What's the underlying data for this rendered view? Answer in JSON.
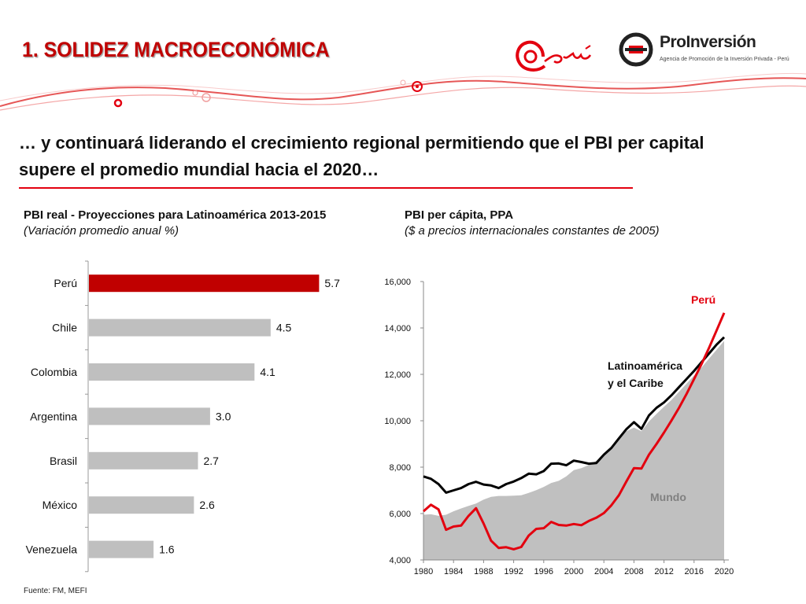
{
  "header": {
    "title": "1. SOLIDEZ MACROECONÓMICA",
    "logo_peru": "Perú",
    "logo_proinversion": "ProInversión",
    "logo_proinversion_tagline": "Agencia de Promoción de la Inversión Privada - Perú"
  },
  "subtitle": "… y continuará liderando el crecimiento regional permitiendo que el PBI per capital supere el promedio mundial hacia el 2020…",
  "colors": {
    "title": "#c00000",
    "accent_line": "#e3000f",
    "peru_bar": "#c00000",
    "other_bars": "#bfbfbf",
    "peru_line": "#e3000f",
    "lac_line": "#000000",
    "world_area": "#c0c0c0"
  },
  "bar_chart_header": {
    "title": "PBI real - Proyecciones para Latinoamérica 2013-2015",
    "subtitle": "(Variación promedio anual %)"
  },
  "line_chart_header": {
    "title": "PBI per cápita, PPA",
    "subtitle": "($ a precios internacionales constantes de 2005)"
  },
  "source": "Fuente: FM, MEFI",
  "chart_data": [
    {
      "type": "bar",
      "orientation": "horizontal",
      "categories": [
        "Perú",
        "Chile",
        "Colombia",
        "Argentina",
        "Brasil",
        "México",
        "Venezuela"
      ],
      "values": [
        5.7,
        4.5,
        4.1,
        3.0,
        2.7,
        2.6,
        1.6
      ],
      "value_labels": [
        "5.7",
        "4.5",
        "4.1",
        "3.0",
        "2.7",
        "2.6",
        "1.6"
      ],
      "highlight": "Perú",
      "xlim": [
        0,
        6.3
      ]
    },
    {
      "type": "line",
      "x": [
        1980,
        1981,
        1982,
        1983,
        1984,
        1985,
        1986,
        1987,
        1988,
        1989,
        1990,
        1991,
        1992,
        1993,
        1994,
        1995,
        1996,
        1997,
        1998,
        1999,
        2000,
        2001,
        2002,
        2003,
        2004,
        2005,
        2006,
        2007,
        2008,
        2009,
        2010,
        2011,
        2012,
        2013,
        2014,
        2015,
        2016,
        2017,
        2018,
        2019,
        2020
      ],
      "x_ticks": [
        "1980",
        "1984",
        "1988",
        "1992",
        "1996",
        "2000",
        "2004",
        "2008",
        "2012",
        "2016",
        "2020"
      ],
      "y_ticks": [
        "4,000",
        "6,000",
        "8,000",
        "10,000",
        "12,000",
        "14,000",
        "16,000"
      ],
      "ylim": [
        4000,
        16000
      ],
      "series": [
        {
          "name": "Mundo",
          "style": "area",
          "values": [
            5950,
            5970,
            5900,
            5950,
            6100,
            6220,
            6330,
            6430,
            6600,
            6720,
            6760,
            6760,
            6770,
            6790,
            6890,
            7010,
            7150,
            7320,
            7410,
            7600,
            7870,
            7960,
            8090,
            8270,
            8560,
            8840,
            9200,
            9550,
            9700,
            9550,
            9970,
            10300,
            10600,
            10900,
            11250,
            11600,
            11950,
            12300,
            12680,
            13060,
            13440
          ]
        },
        {
          "name": "Latinoamérica y el Caribe",
          "style": "line",
          "values": [
            7600,
            7500,
            7270,
            6900,
            7000,
            7100,
            7270,
            7370,
            7250,
            7210,
            7100,
            7270,
            7380,
            7530,
            7720,
            7690,
            7830,
            8150,
            8160,
            8080,
            8280,
            8220,
            8150,
            8180,
            8540,
            8830,
            9240,
            9640,
            9940,
            9650,
            10230,
            10560,
            10790,
            11100,
            11450,
            11800,
            12150,
            12530,
            12900,
            13280,
            13600
          ]
        },
        {
          "name": "Perú",
          "style": "line",
          "values": [
            6100,
            6380,
            6180,
            5300,
            5440,
            5480,
            5900,
            6230,
            5570,
            4830,
            4520,
            4550,
            4460,
            4560,
            5050,
            5340,
            5370,
            5640,
            5510,
            5480,
            5550,
            5500,
            5680,
            5820,
            6020,
            6360,
            6790,
            7390,
            7960,
            7940,
            8540,
            9000,
            9490,
            10010,
            10560,
            11160,
            11800,
            12450,
            13150,
            13890,
            14650
          ]
        }
      ],
      "labels": {
        "peru": "Perú",
        "lac_line1": "Latinoamérica",
        "lac_line2": "y el Caribe",
        "world": "Mundo"
      }
    }
  ]
}
